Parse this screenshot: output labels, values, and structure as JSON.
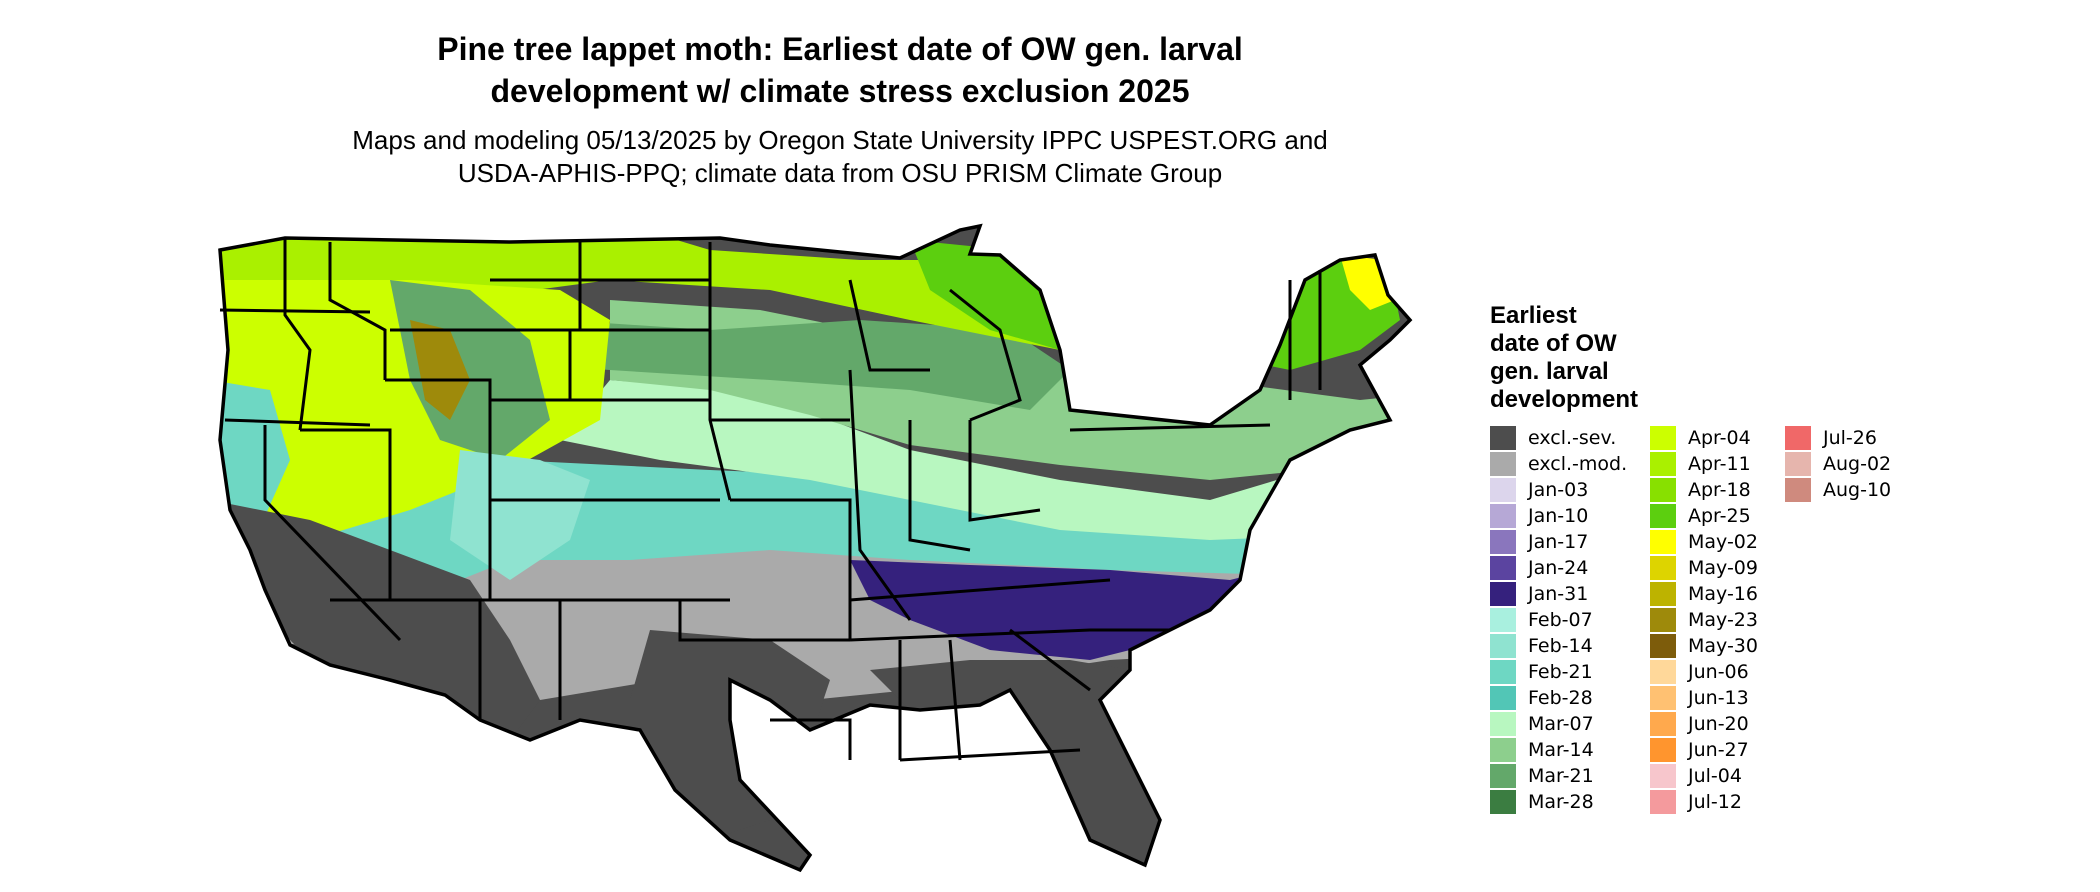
{
  "header": {
    "title_line1": "Pine tree lappet moth: Earliest date of OW gen. larval",
    "title_line2": "development w/ climate stress exclusion 2025",
    "subtitle_line1": "Maps and modeling 05/13/2025 by Oregon State University IPPC USPEST.ORG and",
    "subtitle_line2": "USDA-APHIS-PPQ; climate data from OSU PRISM Climate Group"
  },
  "legend": {
    "title": "Earliest\ndate of OW\ngen. larval\ndevelopment",
    "columns": [
      [
        {
          "label": "excl.-sev.",
          "color": "#4d4d4d"
        },
        {
          "label": "excl.-mod.",
          "color": "#aaaaaa"
        },
        {
          "label": "Jan-03",
          "color": "#dcd5ec"
        },
        {
          "label": "Jan-10",
          "color": "#b6a8d6"
        },
        {
          "label": "Jan-17",
          "color": "#8a76bd"
        },
        {
          "label": "Jan-24",
          "color": "#5b44a0"
        },
        {
          "label": "Jan-31",
          "color": "#35217d"
        },
        {
          "label": "Feb-07",
          "color": "#a9f0df"
        },
        {
          "label": "Feb-14",
          "color": "#8fe3d0"
        },
        {
          "label": "Feb-21",
          "color": "#6ed7c3"
        },
        {
          "label": "Feb-28",
          "color": "#52c6b6"
        },
        {
          "label": "Mar-07",
          "color": "#b8f7c0"
        },
        {
          "label": "Mar-14",
          "color": "#8dcf8d"
        },
        {
          "label": "Mar-21",
          "color": "#63a86a"
        },
        {
          "label": "Mar-28",
          "color": "#3b7d41"
        }
      ],
      [
        {
          "label": "Apr-04",
          "color": "#ccff00"
        },
        {
          "label": "Apr-11",
          "color": "#aaf000"
        },
        {
          "label": "Apr-18",
          "color": "#88e000"
        },
        {
          "label": "Apr-25",
          "color": "#5ccf0f"
        },
        {
          "label": "May-02",
          "color": "#ffff00"
        },
        {
          "label": "May-09",
          "color": "#ddd400"
        },
        {
          "label": "May-16",
          "color": "#bdb300"
        },
        {
          "label": "May-23",
          "color": "#9e8a0b"
        },
        {
          "label": "May-30",
          "color": "#7d5c0b"
        },
        {
          "label": "Jun-06",
          "color": "#ffd89a"
        },
        {
          "label": "Jun-13",
          "color": "#ffc172"
        },
        {
          "label": "Jun-20",
          "color": "#ffa94d"
        },
        {
          "label": "Jun-27",
          "color": "#ff952e"
        },
        {
          "label": "Jul-04",
          "color": "#f7c6cc"
        },
        {
          "label": "Jul-12",
          "color": "#f49a9d"
        }
      ],
      [
        {
          "label": "Jul-26",
          "color": "#f06868"
        },
        {
          "label": "Aug-02",
          "color": "#e6b5ad"
        },
        {
          "label": "Aug-10",
          "color": "#cf8a7e"
        }
      ]
    ]
  }
}
